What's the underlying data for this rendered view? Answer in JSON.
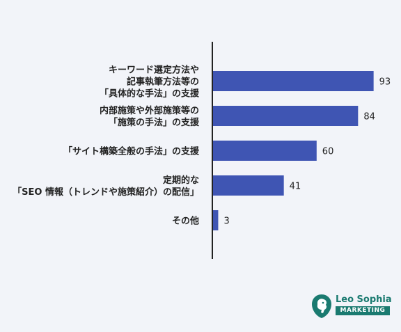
{
  "chart_data": {
    "type": "bar",
    "orientation": "horizontal",
    "categories": [
      [
        "キーワード選定方法や",
        "記事執筆方法等の",
        "「具体的な手法」の支援"
      ],
      [
        "内部施策や外部施策等の",
        "「施策の手法」の支援"
      ],
      [
        "「サイト構築全般の手法」の支援"
      ],
      [
        "定期的な",
        "「SEO 情報（トレンドや施策紹介）の配信」"
      ],
      [
        "その他"
      ]
    ],
    "values": [
      93,
      84,
      60,
      41,
      3
    ],
    "data_labels": [
      "93",
      "84",
      "60",
      "41",
      "3"
    ],
    "xlim": [
      0,
      100
    ],
    "grid": false,
    "legend": "none",
    "bar_color": "#3f55b3"
  },
  "logo": {
    "name": "Leo Sophia",
    "sub": "MARKETING",
    "color": "#1a7a70"
  }
}
